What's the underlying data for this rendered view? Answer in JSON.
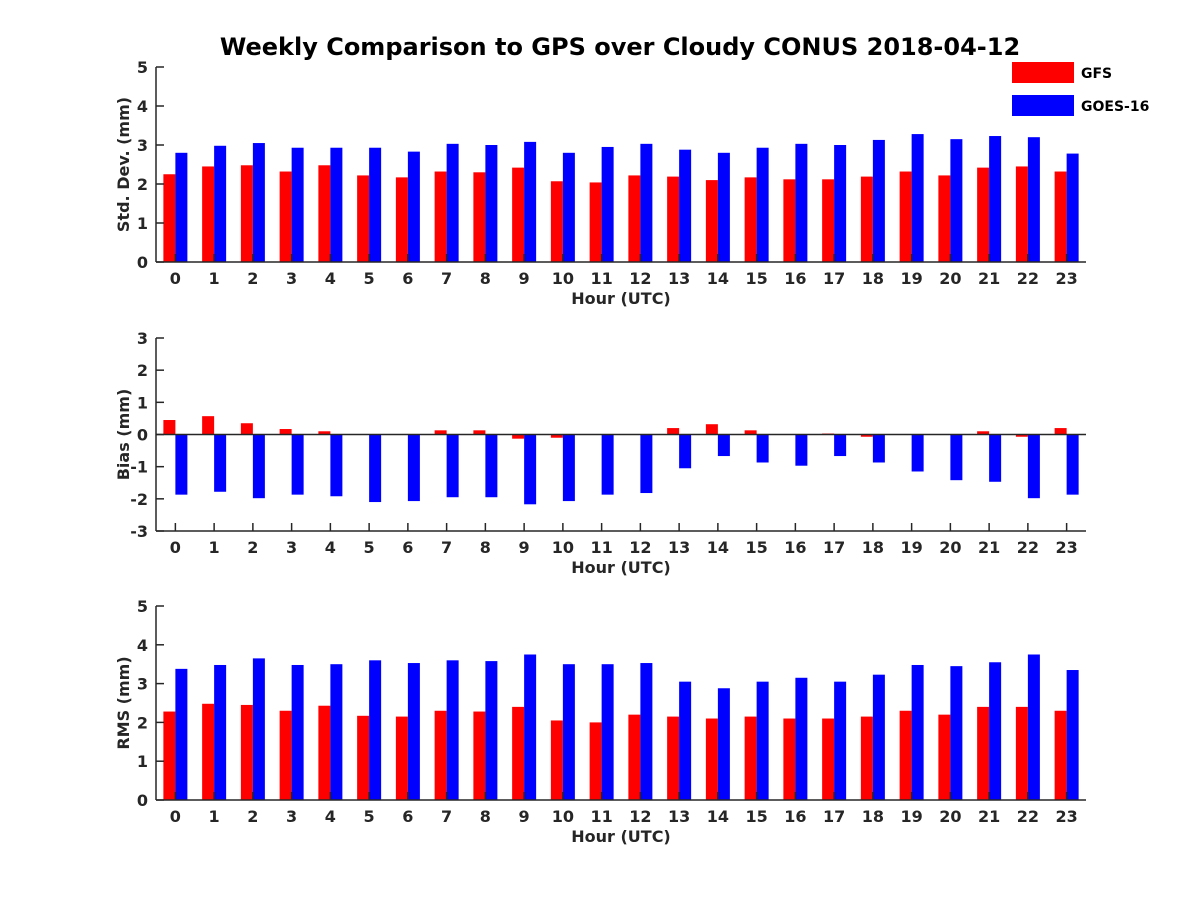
{
  "title": "Weekly Comparison to GPS over Cloudy CONUS 2018-04-12",
  "colors": {
    "GFS": "#ff0000",
    "GOES-16": "#0000ff",
    "axis": "#262626"
  },
  "legend": {
    "placement": "top-right",
    "entries": [
      "GFS",
      "GOES-16"
    ]
  },
  "chart_data": [
    {
      "type": "bar",
      "ylabel": "Std. Dev. (mm)",
      "xlabel": "Hour (UTC)",
      "ylim": [
        0,
        5
      ],
      "yticks": [
        0,
        1,
        2,
        3,
        4,
        5
      ],
      "categories": [
        0,
        1,
        2,
        3,
        4,
        5,
        6,
        7,
        8,
        9,
        10,
        11,
        12,
        13,
        14,
        15,
        16,
        17,
        18,
        19,
        20,
        21,
        22,
        23
      ],
      "series": [
        {
          "name": "GFS",
          "values": [
            2.25,
            2.45,
            2.48,
            2.32,
            2.48,
            2.22,
            2.17,
            2.32,
            2.3,
            2.42,
            2.07,
            2.04,
            2.22,
            2.19,
            2.1,
            2.17,
            2.12,
            2.12,
            2.19,
            2.32,
            2.22,
            2.42,
            2.45,
            2.32
          ]
        },
        {
          "name": "GOES-16",
          "values": [
            2.8,
            2.98,
            3.05,
            2.93,
            2.93,
            2.93,
            2.83,
            3.03,
            3.0,
            3.08,
            2.8,
            2.95,
            3.03,
            2.88,
            2.8,
            2.93,
            3.03,
            3.0,
            3.13,
            3.28,
            3.15,
            3.23,
            3.2,
            2.78
          ]
        }
      ]
    },
    {
      "type": "bar",
      "ylabel": "Bias (mm)",
      "xlabel": "Hour (UTC)",
      "ylim": [
        -3,
        3
      ],
      "yticks": [
        -3,
        -2,
        -1,
        0,
        1,
        2,
        3
      ],
      "categories": [
        0,
        1,
        2,
        3,
        4,
        5,
        6,
        7,
        8,
        9,
        10,
        11,
        12,
        13,
        14,
        15,
        16,
        17,
        18,
        19,
        20,
        21,
        22,
        23
      ],
      "series": [
        {
          "name": "GFS",
          "values": [
            0.45,
            0.57,
            0.35,
            0.17,
            0.1,
            0.0,
            0.0,
            0.13,
            0.13,
            -0.13,
            -0.1,
            0.0,
            0.0,
            0.2,
            0.32,
            0.13,
            0.0,
            0.03,
            -0.07,
            0.0,
            0.0,
            0.1,
            -0.07,
            0.2
          ]
        },
        {
          "name": "GOES-16",
          "values": [
            -1.87,
            -1.78,
            -1.98,
            -1.87,
            -1.92,
            -2.1,
            -2.07,
            -1.95,
            -1.95,
            -2.17,
            -2.07,
            -1.87,
            -1.82,
            -1.05,
            -0.67,
            -0.87,
            -0.97,
            -0.67,
            -0.87,
            -1.15,
            -1.42,
            -1.47,
            -1.98,
            -1.87
          ]
        }
      ]
    },
    {
      "type": "bar",
      "ylabel": "RMS (mm)",
      "xlabel": "Hour (UTC)",
      "ylim": [
        0,
        5
      ],
      "yticks": [
        0,
        1,
        2,
        3,
        4,
        5
      ],
      "categories": [
        0,
        1,
        2,
        3,
        4,
        5,
        6,
        7,
        8,
        9,
        10,
        11,
        12,
        13,
        14,
        15,
        16,
        17,
        18,
        19,
        20,
        21,
        22,
        23
      ],
      "series": [
        {
          "name": "GFS",
          "values": [
            2.28,
            2.48,
            2.45,
            2.3,
            2.43,
            2.17,
            2.15,
            2.3,
            2.28,
            2.4,
            2.05,
            2.0,
            2.2,
            2.15,
            2.1,
            2.15,
            2.1,
            2.1,
            2.15,
            2.3,
            2.2,
            2.4,
            2.4,
            2.3
          ]
        },
        {
          "name": "GOES-16",
          "values": [
            3.38,
            3.48,
            3.65,
            3.48,
            3.5,
            3.6,
            3.53,
            3.6,
            3.58,
            3.75,
            3.5,
            3.5,
            3.53,
            3.05,
            2.88,
            3.05,
            3.15,
            3.05,
            3.23,
            3.48,
            3.45,
            3.55,
            3.75,
            3.35
          ]
        }
      ]
    }
  ]
}
